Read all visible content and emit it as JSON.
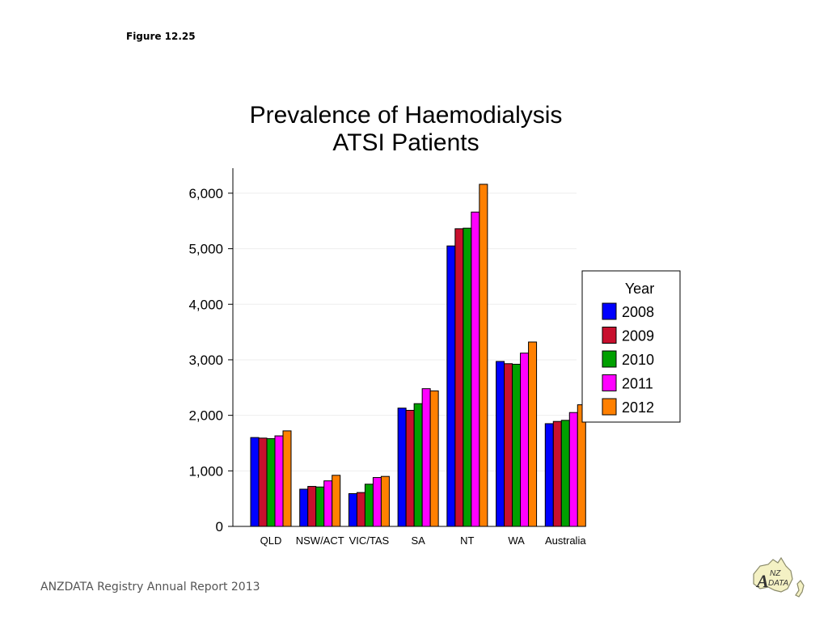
{
  "figure_label": "Figure 12.25",
  "footer": "ANZDATA Registry Annual Report 2013",
  "logo": {
    "icon": "anzdata-logo",
    "text_a": "A",
    "text_nz": "NZ",
    "text_data": "DATA"
  },
  "colors": {
    "2008": "#0000ff",
    "2009": "#c8102e",
    "2010": "#00a000",
    "2011": "#ff00ff",
    "2012": "#ff8000"
  },
  "chart_data": {
    "type": "bar",
    "title": [
      "Prevalence of Haemodialysis",
      "ATSI Patients"
    ],
    "xlabel": "",
    "ylabel": "",
    "ylim": [
      0,
      6450
    ],
    "yticks": [
      0,
      1000,
      2000,
      3000,
      4000,
      5000,
      6000
    ],
    "ytick_labels": [
      "0",
      "1,000",
      "2,000",
      "3,000",
      "4,000",
      "5,000",
      "6,000"
    ],
    "grid": true,
    "legend": {
      "title": "Year",
      "placement": "right"
    },
    "categories": [
      "QLD",
      "NSW/ACT",
      "VIC/TAS",
      "SA",
      "NT",
      "WA",
      "Australia"
    ],
    "series": [
      {
        "name": "2008",
        "values": [
          1600,
          670,
          590,
          2130,
          5050,
          2970,
          1850
        ]
      },
      {
        "name": "2009",
        "values": [
          1590,
          720,
          610,
          2090,
          5360,
          2930,
          1890
        ]
      },
      {
        "name": "2010",
        "values": [
          1580,
          710,
          760,
          2210,
          5370,
          2920,
          1910
        ]
      },
      {
        "name": "2011",
        "values": [
          1630,
          820,
          880,
          2480,
          5660,
          3120,
          2050
        ]
      },
      {
        "name": "2012",
        "values": [
          1720,
          920,
          900,
          2440,
          6160,
          3320,
          2190
        ]
      }
    ]
  }
}
